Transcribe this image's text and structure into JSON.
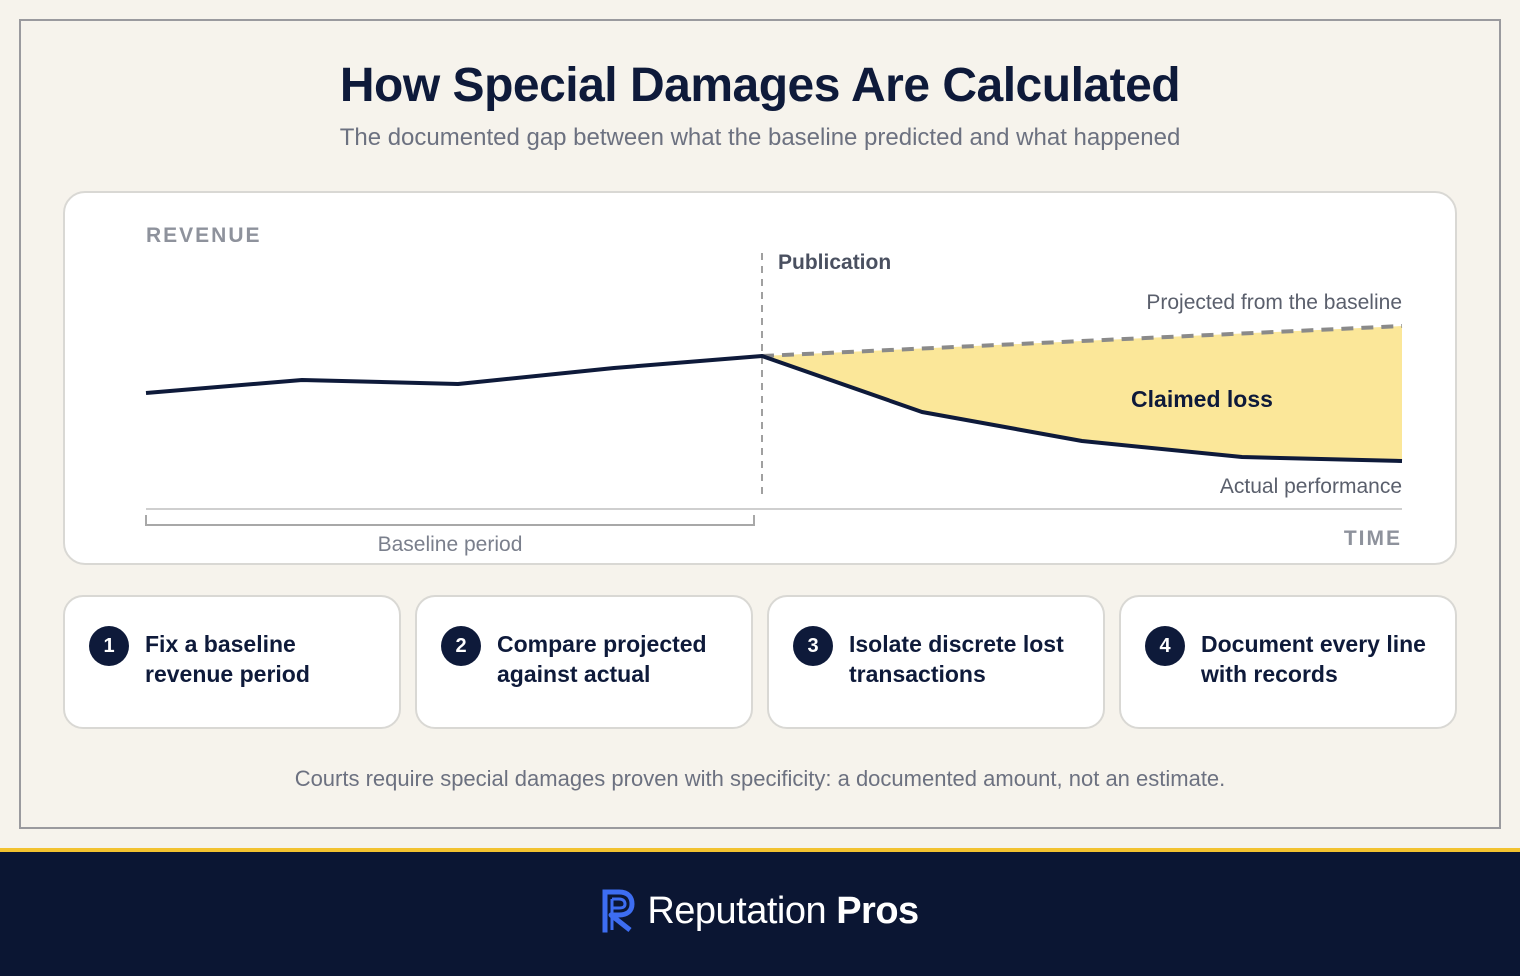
{
  "title": "How Special Damages Are Calculated",
  "subtitle": "The documented gap between what the baseline predicted and what happened",
  "diagram": {
    "y_axis_label": "REVENUE",
    "x_axis_label": "TIME",
    "event_label": "Publication",
    "projected_label": "Projected from the baseline",
    "loss_label": "Claimed loss",
    "actual_label": "Actual performance",
    "baseline_period_label": "Baseline period",
    "colors": {
      "actual_line": "#0e1a3a",
      "projected_line": "#8a8a8a",
      "loss_fill": "#fbe799",
      "event_line": "#a0a0a0"
    }
  },
  "steps": [
    {
      "number": "1",
      "text": "Fix a baseline revenue period"
    },
    {
      "number": "2",
      "text": "Compare projected against actual"
    },
    {
      "number": "3",
      "text": "Isolate discrete lost transactions"
    },
    {
      "number": "4",
      "text": "Document every line with records"
    }
  ],
  "footnote": "Courts require special damages proven with specificity: a documented amount, not an estimate.",
  "brand": {
    "name_light": "Reputation",
    "name_bold": "Pros",
    "logo_icon": "r-logo-icon",
    "accent_color": "#3d6df2"
  }
}
